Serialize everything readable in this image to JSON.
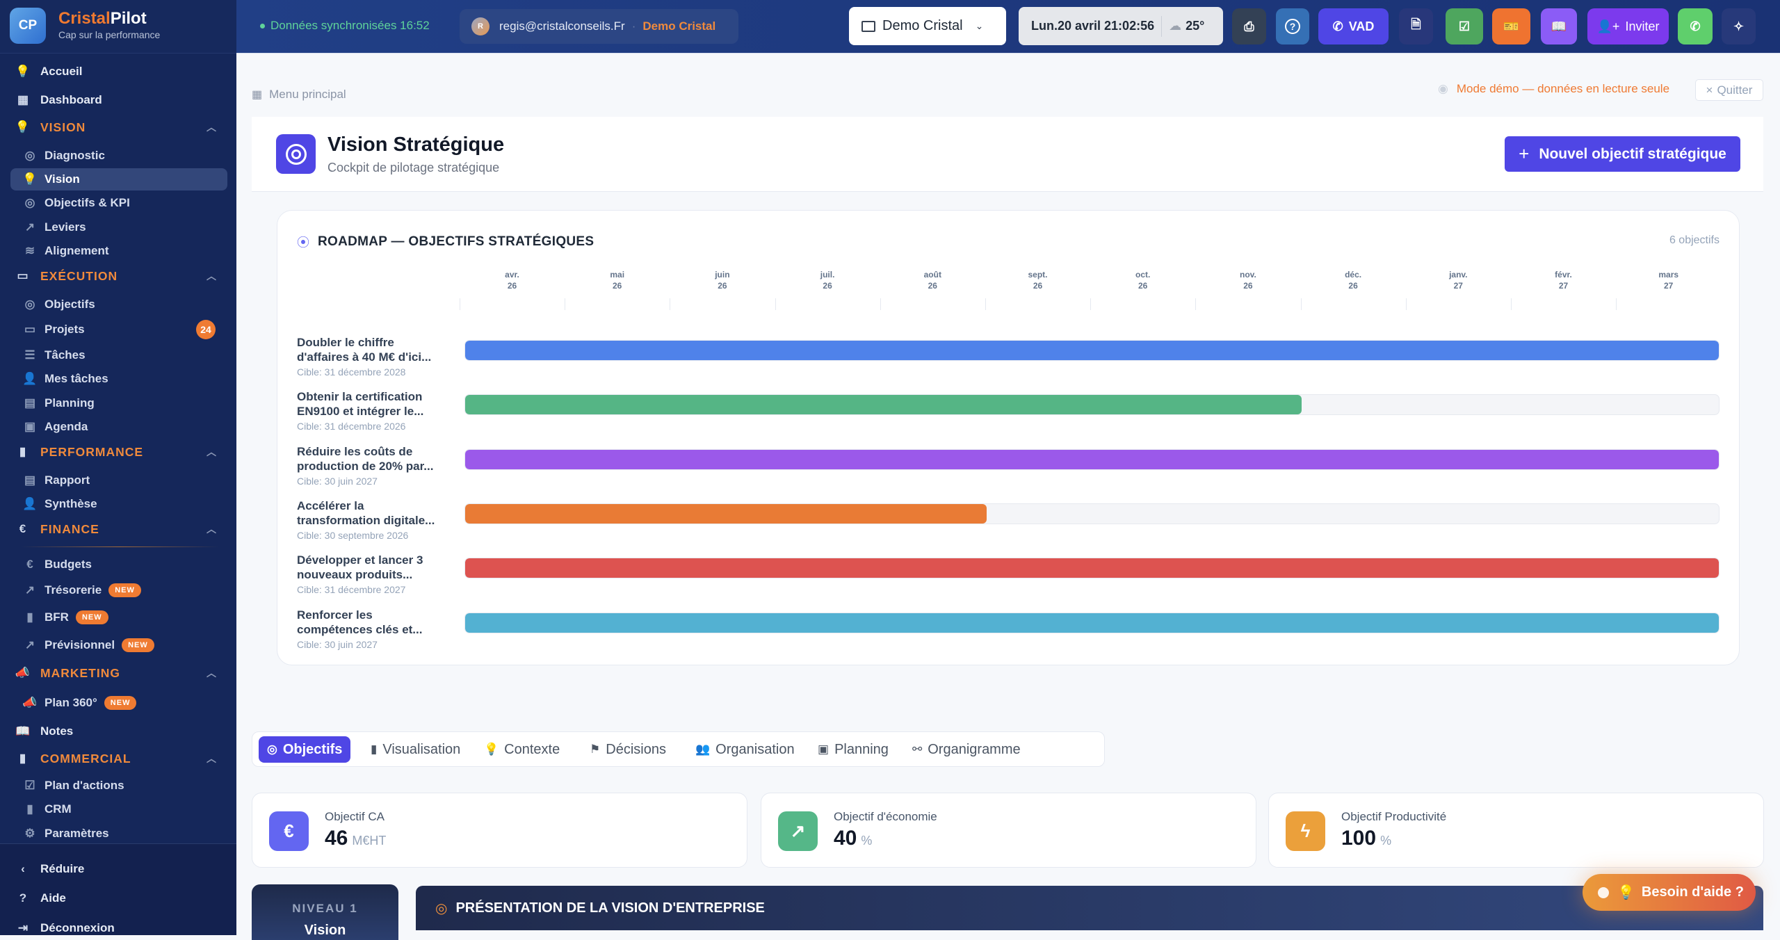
{
  "brand": {
    "logo_initials": "CP",
    "name_part1": "Cristal",
    "name_part2": "Pilot",
    "tagline": "Cap sur la performance"
  },
  "topbar": {
    "sync_status": "Données synchronisées 16:52",
    "user_initial": "R",
    "user_email": "regis@cristalconseils.Fr",
    "user_company": "Demo Cristal",
    "workspace": "Demo Cristal",
    "datetime": "Lun.20 avril 21:02:56",
    "weather": "25°",
    "vad_label": "VAD",
    "invite_label": "Inviter",
    "buttons": [
      {
        "icon": "printer-icon",
        "color": "#334155"
      },
      {
        "icon": "help-circle-icon",
        "color": "#3570b5"
      },
      {
        "icon": "phone-icon",
        "color": "#4f46e5"
      },
      {
        "icon": "document-icon",
        "color": "#28377a"
      },
      {
        "icon": "checkbox-icon",
        "color": "#4ea65e"
      },
      {
        "icon": "ticket-icon",
        "color": "#ef7330"
      },
      {
        "icon": "book-icon",
        "color": "#8b5cf6"
      },
      {
        "icon": "user-plus-icon",
        "color": "#7c3aed"
      },
      {
        "icon": "whatsapp-icon",
        "color": "#5fcf6c"
      },
      {
        "icon": "sparkles-icon",
        "color": "#27397a"
      }
    ]
  },
  "sidebar": {
    "items": [
      {
        "label": "Accueil",
        "icon": "lightbulb-icon",
        "type": "top"
      },
      {
        "label": "Dashboard",
        "icon": "dashboard-icon",
        "type": "top"
      },
      {
        "label": "VISION",
        "icon": "lightbulb-icon",
        "type": "section"
      },
      {
        "label": "Diagnostic",
        "icon": "target-icon",
        "type": "sub"
      },
      {
        "label": "Vision",
        "icon": "lightbulb-icon",
        "type": "sub",
        "active": true
      },
      {
        "label": "Objectifs & KPI",
        "icon": "target-icon",
        "type": "sub"
      },
      {
        "label": "Leviers",
        "icon": "trending-up-icon",
        "type": "sub"
      },
      {
        "label": "Alignement",
        "icon": "layers-icon",
        "type": "sub"
      },
      {
        "label": "EXÉCUTION",
        "icon": "folder-kanban-icon",
        "type": "section"
      },
      {
        "label": "Objectifs",
        "icon": "target-icon",
        "type": "sub"
      },
      {
        "label": "Projets",
        "icon": "folder-kanban-icon",
        "type": "sub",
        "count": "24"
      },
      {
        "label": "Tâches",
        "icon": "list-checks-icon",
        "type": "sub"
      },
      {
        "label": "Mes tâches",
        "icon": "user-icon",
        "type": "sub"
      },
      {
        "label": "Planning",
        "icon": "planning-icon",
        "type": "sub"
      },
      {
        "label": "Agenda",
        "icon": "calendar-icon",
        "type": "sub"
      },
      {
        "label": "PERFORMANCE",
        "icon": "bar-chart-icon",
        "type": "section"
      },
      {
        "label": "Rapport",
        "icon": "file-text-icon",
        "type": "sub"
      },
      {
        "label": "Synthèse",
        "icon": "user-icon",
        "type": "sub"
      },
      {
        "label": "FINANCE",
        "icon": "euro-icon",
        "type": "section"
      },
      {
        "label": "Budgets",
        "icon": "euro-icon",
        "type": "sub"
      },
      {
        "label": "Trésorerie",
        "icon": "trending-up-icon",
        "type": "sub",
        "badge": "NEW"
      },
      {
        "label": "BFR",
        "icon": "bar-chart-icon",
        "type": "sub",
        "badge": "NEW"
      },
      {
        "label": "Prévisionnel",
        "icon": "trending-up-icon",
        "type": "sub",
        "badge": "NEW"
      },
      {
        "label": "MARKETING",
        "icon": "megaphone-icon",
        "type": "section"
      },
      {
        "label": "Plan 360°",
        "icon": "megaphone-icon",
        "type": "sub",
        "badge": "NEW"
      },
      {
        "label": "Notes",
        "icon": "book-icon",
        "type": "top"
      },
      {
        "label": "COMMERCIAL",
        "icon": "bar-chart-icon",
        "type": "section"
      },
      {
        "label": "Plan d'actions",
        "icon": "checkbox-icon",
        "type": "sub"
      },
      {
        "label": "CRM",
        "icon": "bar-chart-icon",
        "type": "sub"
      },
      {
        "label": "Paramètres",
        "icon": "gear-icon",
        "type": "sub"
      }
    ],
    "bottom": [
      {
        "label": "Réduire",
        "icon": "chevron-left-icon"
      },
      {
        "label": "Aide",
        "icon": "help-circle-icon"
      },
      {
        "label": "Déconnexion",
        "icon": "logout-icon"
      }
    ]
  },
  "main": {
    "breadcrumb": "Menu principal",
    "demo_notice": "Mode démo — données en lecture seule",
    "quit_label": "Quitter",
    "title": "Vision Stratégique",
    "subtitle": "Cockpit de pilotage stratégique",
    "new_button": "Nouvel objectif stratégique",
    "tabs": [
      {
        "label": "Objectifs",
        "icon": "target-icon",
        "active": true
      },
      {
        "label": "Visualisation",
        "icon": "bar-chart-icon"
      },
      {
        "label": "Contexte",
        "icon": "lightbulb-icon"
      },
      {
        "label": "Décisions",
        "icon": "flag-icon"
      },
      {
        "label": "Organisation",
        "icon": "users-icon"
      },
      {
        "label": "Planning",
        "icon": "calendar-icon"
      },
      {
        "label": "Organigramme",
        "icon": "org-chart-icon"
      }
    ],
    "kpis": [
      {
        "label": "Objectif CA",
        "value": "46",
        "unit": "M€HT",
        "icon": "euro-icon",
        "color": "#6366f1"
      },
      {
        "label": "Objectif d'économie",
        "value": "40",
        "unit": "%",
        "icon": "trending-up-icon",
        "color": "#55b788"
      },
      {
        "label": "Objectif Productivité",
        "value": "100",
        "unit": "%",
        "icon": "zap-icon",
        "color": "#eba03b"
      }
    ],
    "level": {
      "label": "NIVEAU 1",
      "name": "Vision"
    },
    "presentation_title": "PRÉSENTATION DE LA VISION D'ENTREPRISE",
    "help_button": "Besoin d'aide ?"
  },
  "chart_data": {
    "type": "bar",
    "orientation": "horizontal",
    "title": "ROADMAP — OBJECTIFS STRATÉGIQUES",
    "count_label": "6 objectifs",
    "x_ticks": [
      {
        "month": "avr.",
        "year": "26"
      },
      {
        "month": "mai",
        "year": "26"
      },
      {
        "month": "juin",
        "year": "26"
      },
      {
        "month": "juil.",
        "year": "26"
      },
      {
        "month": "août",
        "year": "26"
      },
      {
        "month": "sept.",
        "year": "26"
      },
      {
        "month": "oct.",
        "year": "26"
      },
      {
        "month": "nov.",
        "year": "26"
      },
      {
        "month": "déc.",
        "year": "26"
      },
      {
        "month": "janv.",
        "year": "27"
      },
      {
        "month": "févr.",
        "year": "27"
      },
      {
        "month": "mars",
        "year": "27"
      }
    ],
    "rows": [
      {
        "title": "Doubler le chiffre d'affaires à 40 M€ d'ici...",
        "target": "Cible: 31 décembre 2028",
        "fill": 1.0,
        "color": "#4f82ea"
      },
      {
        "title": "Obtenir la certification EN9100 et intégrer le...",
        "target": "Cible: 31 décembre 2026",
        "fill": 0.667,
        "color": "#55b585"
      },
      {
        "title": "Réduire les coûts de production de 20% par...",
        "target": "Cible: 30 juin 2027",
        "fill": 1.0,
        "color": "#9b59ea"
      },
      {
        "title": "Accélérer la transformation digitale...",
        "target": "Cible: 30 septembre 2026",
        "fill": 0.416,
        "color": "#e97b35"
      },
      {
        "title": "Développer et lancer 3 nouveaux produits...",
        "target": "Cible: 31 décembre 2027",
        "fill": 1.0,
        "color": "#dd5350"
      },
      {
        "title": "Renforcer les compétences clés et...",
        "target": "Cible: 30 juin 2027",
        "fill": 1.0,
        "color": "#53b1d2"
      }
    ]
  }
}
